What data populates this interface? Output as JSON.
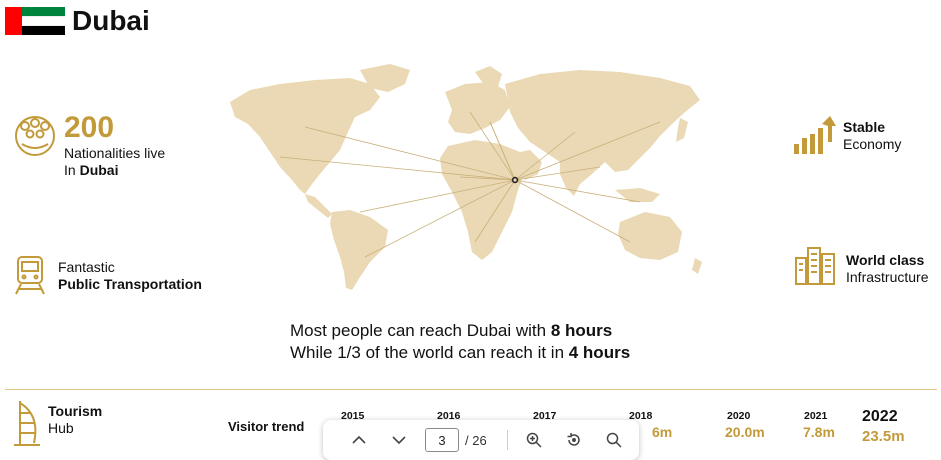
{
  "header": {
    "title": "Dubai"
  },
  "features": {
    "nationalities": {
      "number": "200",
      "line1": "Nationalities live",
      "line2_prefix": "In ",
      "line2_bold": "Dubai"
    },
    "transport": {
      "line1": "Fantastic",
      "line2": "Public Transportation"
    },
    "economy": {
      "line1": "Stable",
      "line2": "Economy"
    },
    "infrastructure": {
      "line1": "World class",
      "line2": "Infrastructure"
    },
    "tourism": {
      "line1": "Tourism",
      "line2": "Hub"
    }
  },
  "caption": {
    "line1_prefix": "Most people can reach Dubai with ",
    "line1_bold": "8 hours",
    "line2_prefix": "While 1/3 of the world can reach it in ",
    "line2_bold": "4 hours"
  },
  "visitor_trend": {
    "label": "Visitor trend",
    "years": [
      {
        "year": "2015",
        "value": ""
      },
      {
        "year": "2016",
        "value": ""
      },
      {
        "year": "2017",
        "value": ""
      },
      {
        "year": "2018",
        "value": "6m"
      },
      {
        "year": "2020",
        "value": "20.0m"
      },
      {
        "year": "2021",
        "value": "7.8m"
      },
      {
        "year": "2022",
        "value": "23.5m"
      }
    ]
  },
  "toolbar": {
    "page_current": "3",
    "page_total": "/ 26"
  },
  "colors": {
    "accent": "#c29a3a",
    "map": "#ead9b4"
  },
  "icons": [
    "people-icon",
    "train-icon",
    "growth-chart-icon",
    "buildings-icon",
    "burj-al-arab-icon",
    "chevron-up-icon",
    "chevron-down-icon",
    "zoom-in-icon",
    "rotate-icon",
    "search-icon"
  ]
}
